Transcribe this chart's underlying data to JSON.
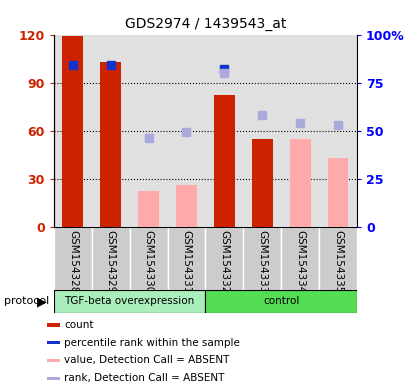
{
  "title": "GDS2974 / 1439543_at",
  "samples": [
    "GSM154328",
    "GSM154329",
    "GSM154330",
    "GSM154331",
    "GSM154332",
    "GSM154333",
    "GSM154334",
    "GSM154335"
  ],
  "red_bars": [
    119,
    103,
    null,
    null,
    82,
    55,
    55,
    null
  ],
  "pink_bars": [
    null,
    null,
    22,
    26,
    null,
    null,
    55,
    43
  ],
  "blue_squares": [
    84,
    84,
    null,
    null,
    82,
    null,
    null,
    null
  ],
  "light_blue_squares": [
    null,
    null,
    46,
    49,
    80,
    58,
    54,
    53
  ],
  "left_ylim": [
    0,
    120
  ],
  "right_ylim": [
    0,
    100
  ],
  "left_yticks": [
    0,
    30,
    60,
    90,
    120
  ],
  "right_yticks": [
    0,
    25,
    50,
    75,
    100
  ],
  "left_yticklabels": [
    "0",
    "30",
    "60",
    "90",
    "120"
  ],
  "right_yticklabels": [
    "0",
    "25",
    "50",
    "75",
    "100%"
  ],
  "left_color": "#cc2200",
  "pink_color": "#ffaaaa",
  "blue_color": "#1133cc",
  "light_blue_color": "#aaaadd",
  "plot_bg": "#e0e0e0",
  "tgf_color": "#aaeebb",
  "ctrl_color": "#55dd55",
  "group_border": "#000000",
  "sample_box_color": "#cccccc",
  "legend_items": [
    "count",
    "percentile rank within the sample",
    "value, Detection Call = ABSENT",
    "rank, Detection Call = ABSENT"
  ]
}
